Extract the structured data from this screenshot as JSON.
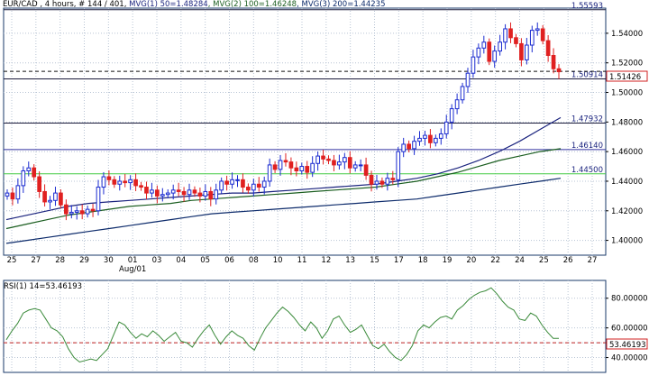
{
  "main_panel": {
    "header": "EUR/CAD , 4 hours, # 144 / 401, ",
    "indicators": [
      {
        "text": "MVG(1) 50=1.48284",
        "color": "#1a237e"
      },
      {
        "text": ", MVG(2) 100=1.46248",
        "color": "#1b5e20"
      },
      {
        "text": ", MVG(3) 200=1.44235",
        "color": "#0d2b6b"
      }
    ],
    "current_price": "1.51426"
  },
  "rsi_panel": {
    "header": "RSI(1) 14=53.46193",
    "current_value": "53.46193"
  },
  "colors": {
    "up_candle": "#1a2bd0",
    "down_candle": "#e02020",
    "grid": "#b8c4d4",
    "hline": "#1a1a3a",
    "hline_blue": "#3030a0",
    "hline_green": "#44cc44",
    "rsi_line": "#3a8a3a",
    "rsi_level": "#c02020",
    "border": "#1a3a6a"
  },
  "chart_data": [
    {
      "type": "candlestick",
      "symbol": "EUR/CAD",
      "timeframe": "4 hours",
      "x_labels": [
        "25",
        "27",
        "28",
        "29",
        "30",
        "01",
        "03",
        "04",
        "05",
        "06",
        "08",
        "10",
        "11",
        "12",
        "13",
        "15",
        "17",
        "18",
        "19",
        "20",
        "22",
        "24",
        "25",
        "26",
        "27"
      ],
      "x_sublabel": "Aug/01",
      "y_ticks": [
        "1.54000",
        "1.52000",
        "1.50000",
        "1.48000",
        "1.46000",
        "1.44000",
        "1.42000",
        "1.40000"
      ],
      "ylim": [
        1.39,
        1.557
      ],
      "horizontal_levels": [
        {
          "label": "1.55593",
          "value": 1.55593,
          "color": "hline"
        },
        {
          "label": "1.50914",
          "value": 1.50914,
          "color": "hline"
        },
        {
          "label": "1.47932",
          "value": 1.47932,
          "color": "hline"
        },
        {
          "label": "1.46140",
          "value": 1.4614,
          "color": "hline_blue"
        },
        {
          "label": "1.44500",
          "value": 1.445,
          "color": "hline_green"
        }
      ],
      "dashed_level": 1.51426,
      "close_series": [
        1.432,
        1.428,
        1.437,
        1.447,
        1.449,
        1.443,
        1.433,
        1.426,
        1.427,
        1.432,
        1.424,
        1.418,
        1.419,
        1.42,
        1.418,
        1.421,
        1.42,
        1.436,
        1.443,
        1.441,
        1.438,
        1.44,
        1.439,
        1.441,
        1.437,
        1.436,
        1.432,
        1.434,
        1.43,
        1.431,
        1.432,
        1.434,
        1.433,
        1.431,
        1.434,
        1.432,
        1.43,
        1.433,
        1.428,
        1.434,
        1.44,
        1.438,
        1.441,
        1.441,
        1.436,
        1.434,
        1.438,
        1.436,
        1.44,
        1.451,
        1.448,
        1.454,
        1.453,
        1.449,
        1.447,
        1.45,
        1.446,
        1.452,
        1.457,
        1.455,
        1.454,
        1.451,
        1.453,
        1.456,
        1.449,
        1.451,
        1.451,
        1.444,
        1.438,
        1.44,
        1.438,
        1.442,
        1.441,
        1.46,
        1.465,
        1.462,
        1.467,
        1.469,
        1.471,
        1.466,
        1.469,
        1.472,
        1.48,
        1.489,
        1.495,
        1.504,
        1.513,
        1.524,
        1.53,
        1.534,
        1.521,
        1.528,
        1.534,
        1.543,
        1.537,
        1.533,
        1.522,
        1.532,
        1.542,
        1.543,
        1.535,
        1.525,
        1.516,
        1.514
      ],
      "series": [
        {
          "name": "MVG(1) 50",
          "values": [
            1.414,
            1.417,
            1.42,
            1.423,
            1.425,
            1.426,
            1.427,
            1.428,
            1.429,
            1.43,
            1.431,
            1.432,
            1.432,
            1.433,
            1.434,
            1.435,
            1.436,
            1.437,
            1.438,
            1.44,
            1.442,
            1.445,
            1.449,
            1.454,
            1.46,
            1.467,
            1.475,
            1.483
          ]
        },
        {
          "name": "MVG(2) 100",
          "values": [
            1.408,
            1.411,
            1.414,
            1.417,
            1.419,
            1.421,
            1.423,
            1.424,
            1.425,
            1.427,
            1.428,
            1.429,
            1.43,
            1.431,
            1.432,
            1.433,
            1.434,
            1.435,
            1.436,
            1.438,
            1.44,
            1.443,
            1.446,
            1.45,
            1.454,
            1.457,
            1.46,
            1.462
          ]
        },
        {
          "name": "MVG(3) 200",
          "values": [
            1.398,
            1.4,
            1.402,
            1.404,
            1.406,
            1.408,
            1.41,
            1.412,
            1.414,
            1.416,
            1.418,
            1.419,
            1.42,
            1.421,
            1.422,
            1.423,
            1.424,
            1.425,
            1.426,
            1.427,
            1.428,
            1.43,
            1.432,
            1.434,
            1.436,
            1.438,
            1.44,
            1.442
          ]
        }
      ]
    },
    {
      "type": "line",
      "name": "RSI(1) 14",
      "y_ticks": [
        "80.00000",
        "60.00000",
        "50.00000",
        "40.00000"
      ],
      "ylim": [
        30,
        92
      ],
      "level": 50,
      "values": [
        52,
        58,
        63,
        70,
        72,
        73,
        72,
        66,
        60,
        58,
        54,
        46,
        40,
        37,
        38,
        39,
        38,
        42,
        46,
        55,
        64,
        62,
        57,
        53,
        56,
        54,
        58,
        55,
        51,
        54,
        57,
        51,
        50,
        47,
        53,
        58,
        62,
        55,
        49,
        54,
        58,
        55,
        53,
        48,
        45,
        53,
        60,
        65,
        70,
        74,
        71,
        67,
        62,
        58,
        64,
        60,
        53,
        58,
        66,
        68,
        62,
        57,
        59,
        62,
        55,
        48,
        46,
        49,
        44,
        40,
        38,
        42,
        48,
        58,
        62,
        60,
        64,
        67,
        68,
        66,
        72,
        75,
        79,
        82,
        84,
        85,
        87,
        83,
        78,
        74,
        72,
        66,
        65,
        70,
        68,
        62,
        57,
        53,
        53
      ]
    }
  ]
}
